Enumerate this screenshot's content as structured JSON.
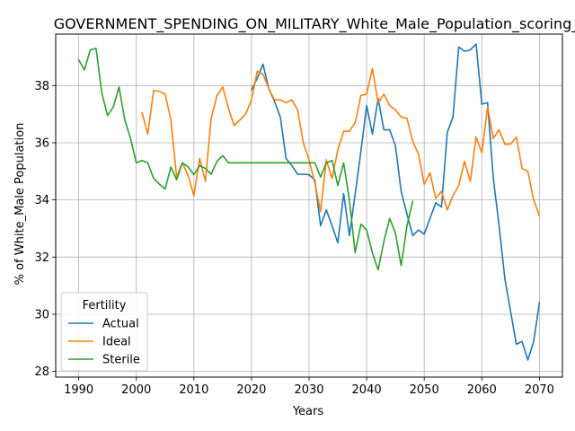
{
  "chart_data": {
    "type": "line",
    "title": "GOVERNMENT_SPENDING_ON_MILITARY_White_Male_Population_scoring_",
    "xlabel": "Years",
    "ylabel": "% of White_Male Population",
    "xlim": [
      1986,
      2074
    ],
    "ylim": [
      27.8,
      39.8
    ],
    "xticks": [
      1990,
      2000,
      2010,
      2020,
      2030,
      2040,
      2050,
      2060,
      2070
    ],
    "yticks": [
      28,
      30,
      32,
      34,
      36,
      38
    ],
    "grid": true,
    "legend": {
      "title": "Fertility",
      "placement": "lower-left"
    },
    "series": [
      {
        "name": "Actual",
        "color": "#1f77b4",
        "x": [
          2020,
          2021,
          2022,
          2023,
          2024,
          2025,
          2026,
          2027,
          2028,
          2029,
          2030,
          2031,
          2032,
          2033,
          2034,
          2035,
          2036,
          2037,
          2038,
          2039,
          2040,
          2041,
          2042,
          2043,
          2044,
          2045,
          2046,
          2047,
          2048,
          2049,
          2050,
          2051,
          2052,
          2053,
          2054,
          2055,
          2056,
          2057,
          2058,
          2059,
          2060,
          2061,
          2062,
          2063,
          2064,
          2065,
          2066,
          2067,
          2068,
          2069,
          2070
        ],
        "y": [
          37.85,
          38.25,
          38.75,
          37.9,
          37.45,
          36.9,
          35.45,
          35.2,
          34.9,
          34.9,
          34.88,
          34.7,
          33.1,
          33.65,
          33.1,
          32.5,
          34.22,
          32.75,
          34.2,
          35.7,
          37.3,
          36.3,
          37.55,
          36.45,
          36.45,
          35.9,
          34.3,
          33.5,
          32.75,
          32.95,
          32.8,
          33.35,
          33.9,
          33.75,
          36.35,
          36.9,
          39.35,
          39.2,
          39.25,
          39.45,
          37.35,
          37.4,
          34.75,
          33.1,
          31.25,
          30.1,
          28.95,
          29.05,
          28.4,
          29.05,
          30.4
        ]
      },
      {
        "name": "Ideal",
        "color": "#ff7f0e",
        "x": [
          2001,
          2002,
          2003,
          2004,
          2005,
          2006,
          2007,
          2008,
          2009,
          2010,
          2011,
          2012,
          2013,
          2014,
          2015,
          2016,
          2017,
          2018,
          2019,
          2020,
          2021,
          2022,
          2023,
          2024,
          2025,
          2026,
          2027,
          2028,
          2029,
          2030,
          2031,
          2032,
          2033,
          2034,
          2035,
          2036,
          2037,
          2038,
          2039,
          2040,
          2041,
          2042,
          2043,
          2044,
          2045,
          2046,
          2047,
          2048,
          2049,
          2050,
          2051,
          2052,
          2053,
          2054,
          2055,
          2056,
          2057,
          2058,
          2059,
          2060,
          2061,
          2062,
          2063,
          2064,
          2065,
          2066,
          2067,
          2068,
          2069,
          2070
        ],
        "y": [
          37.05,
          36.3,
          37.82,
          37.8,
          37.7,
          36.8,
          34.8,
          35.3,
          34.85,
          34.15,
          35.45,
          34.65,
          36.85,
          37.65,
          37.95,
          37.2,
          36.6,
          36.8,
          37.0,
          37.5,
          38.5,
          38.4,
          37.9,
          37.5,
          37.5,
          37.4,
          37.5,
          37.15,
          36.0,
          35.4,
          34.6,
          33.6,
          35.4,
          34.75,
          35.75,
          36.4,
          36.4,
          36.7,
          37.65,
          37.7,
          38.6,
          37.4,
          37.7,
          37.3,
          37.15,
          36.9,
          36.85,
          36.05,
          35.6,
          34.55,
          34.95,
          34.05,
          34.3,
          33.65,
          34.15,
          34.5,
          35.35,
          34.65,
          36.2,
          35.65,
          37.25,
          36.15,
          36.45,
          35.95,
          35.95,
          36.2,
          35.1,
          35.0,
          34.0,
          33.45
        ]
      },
      {
        "name": "Sterile",
        "color": "#2ca02c",
        "x": [
          1990,
          1991,
          1992,
          1993,
          1994,
          1995,
          1996,
          1997,
          1998,
          1999,
          2000,
          2001,
          2002,
          2003,
          2004,
          2005,
          2006,
          2007,
          2008,
          2009,
          2010,
          2011,
          2012,
          2013,
          2014,
          2015,
          2016,
          2017,
          2018,
          2019,
          2020,
          2021,
          2022,
          2023,
          2024,
          2025,
          2026,
          2027,
          2028,
          2029,
          2030,
          2031,
          2032,
          2033,
          2034,
          2035,
          2036,
          2037,
          2038,
          2039,
          2040,
          2041,
          2042,
          2043,
          2044,
          2045,
          2046,
          2047,
          2048
        ],
        "y": [
          38.9,
          38.55,
          39.25,
          39.3,
          37.75,
          36.95,
          37.25,
          37.95,
          36.8,
          36.15,
          35.3,
          35.38,
          35.3,
          34.75,
          34.55,
          34.38,
          35.15,
          34.7,
          35.3,
          35.15,
          34.88,
          35.2,
          35.1,
          34.9,
          35.35,
          35.55,
          35.3,
          35.3,
          35.3,
          35.3,
          35.3,
          35.3,
          35.3,
          35.3,
          35.3,
          35.3,
          35.3,
          35.3,
          35.3,
          35.3,
          35.3,
          35.3,
          34.8,
          35.3,
          35.38,
          34.5,
          35.3,
          34.0,
          32.15,
          33.15,
          32.95,
          32.15,
          31.55,
          32.55,
          33.35,
          32.85,
          31.7,
          33.1,
          33.95
        ]
      }
    ]
  }
}
